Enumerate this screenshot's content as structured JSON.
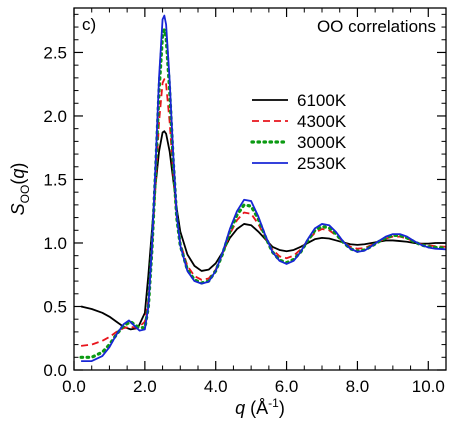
{
  "chart_data": {
    "type": "line",
    "panel_label": "c)",
    "annotation": "OO correlations",
    "xlabel": {
      "symbol": "q",
      "unit_open": " (Å",
      "unit_exp": "-1",
      "unit_close": ")"
    },
    "ylabel": {
      "symbol": "S",
      "subscript": "OO",
      "arg_open": "(",
      "arg": "q",
      "arg_close": ")"
    },
    "xlim": [
      0.0,
      10.5
    ],
    "ylim": [
      0.0,
      2.85
    ],
    "xticks": [
      "0.0",
      "2.0",
      "4.0",
      "6.0",
      "8.0",
      "10.0"
    ],
    "xtick_values": [
      0,
      2,
      4,
      6,
      8,
      10
    ],
    "yticks": [
      "0.0",
      "0.5",
      "1.0",
      "1.5",
      "2.0",
      "2.5"
    ],
    "ytick_values": [
      0,
      0.5,
      1.0,
      1.5,
      2.0,
      2.5
    ],
    "grid": false,
    "legend_position": "upper-right",
    "series": [
      {
        "name": "6100K",
        "color": "#000000",
        "style": "solid",
        "points": [
          [
            0.2,
            0.5
          ],
          [
            0.5,
            0.48
          ],
          [
            0.8,
            0.45
          ],
          [
            1.0,
            0.42
          ],
          [
            1.2,
            0.38
          ],
          [
            1.4,
            0.34
          ],
          [
            1.6,
            0.32
          ],
          [
            1.8,
            0.33
          ],
          [
            2.0,
            0.45
          ],
          [
            2.1,
            0.75
          ],
          [
            2.2,
            1.1
          ],
          [
            2.3,
            1.45
          ],
          [
            2.4,
            1.72
          ],
          [
            2.5,
            1.87
          ],
          [
            2.55,
            1.88
          ],
          [
            2.6,
            1.86
          ],
          [
            2.7,
            1.72
          ],
          [
            2.8,
            1.5
          ],
          [
            2.9,
            1.27
          ],
          [
            3.0,
            1.09
          ],
          [
            3.2,
            0.91
          ],
          [
            3.4,
            0.82
          ],
          [
            3.6,
            0.78
          ],
          [
            3.8,
            0.79
          ],
          [
            4.0,
            0.84
          ],
          [
            4.2,
            0.93
          ],
          [
            4.4,
            1.04
          ],
          [
            4.6,
            1.11
          ],
          [
            4.8,
            1.15
          ],
          [
            5.0,
            1.14
          ],
          [
            5.2,
            1.09
          ],
          [
            5.4,
            1.03
          ],
          [
            5.6,
            0.97
          ],
          [
            5.8,
            0.945
          ],
          [
            6.0,
            0.935
          ],
          [
            6.2,
            0.945
          ],
          [
            6.4,
            0.97
          ],
          [
            6.6,
            1.0
          ],
          [
            6.8,
            1.03
          ],
          [
            7.0,
            1.04
          ],
          [
            7.2,
            1.035
          ],
          [
            7.4,
            1.02
          ],
          [
            7.6,
            1.005
          ],
          [
            7.8,
            0.99
          ],
          [
            8.0,
            0.985
          ],
          [
            8.2,
            0.99
          ],
          [
            8.4,
            1.0
          ],
          [
            8.6,
            1.01
          ],
          [
            8.8,
            1.02
          ],
          [
            9.0,
            1.02
          ],
          [
            9.2,
            1.015
          ],
          [
            9.4,
            1.01
          ],
          [
            9.6,
            1.0
          ],
          [
            9.8,
            0.995
          ],
          [
            10.0,
            0.995
          ],
          [
            10.2,
            1.0
          ],
          [
            10.5,
            1.0
          ]
        ]
      },
      {
        "name": "4300K",
        "color": "#e8141c",
        "style": "dashed",
        "points": [
          [
            0.2,
            0.19
          ],
          [
            0.5,
            0.2
          ],
          [
            0.8,
            0.23
          ],
          [
            1.0,
            0.26
          ],
          [
            1.2,
            0.3
          ],
          [
            1.4,
            0.33
          ],
          [
            1.6,
            0.34
          ],
          [
            1.8,
            0.33
          ],
          [
            2.0,
            0.38
          ],
          [
            2.1,
            0.55
          ],
          [
            2.2,
            0.95
          ],
          [
            2.3,
            1.45
          ],
          [
            2.4,
            1.95
          ],
          [
            2.5,
            2.26
          ],
          [
            2.55,
            2.29
          ],
          [
            2.6,
            2.25
          ],
          [
            2.7,
            1.95
          ],
          [
            2.8,
            1.55
          ],
          [
            2.9,
            1.2
          ],
          [
            3.0,
            1.0
          ],
          [
            3.2,
            0.82
          ],
          [
            3.4,
            0.74
          ],
          [
            3.6,
            0.71
          ],
          [
            3.8,
            0.72
          ],
          [
            4.0,
            0.79
          ],
          [
            4.2,
            0.92
          ],
          [
            4.4,
            1.07
          ],
          [
            4.6,
            1.18
          ],
          [
            4.8,
            1.24
          ],
          [
            5.0,
            1.23
          ],
          [
            5.2,
            1.15
          ],
          [
            5.4,
            1.04
          ],
          [
            5.6,
            0.95
          ],
          [
            5.8,
            0.895
          ],
          [
            6.0,
            0.88
          ],
          [
            6.2,
            0.9
          ],
          [
            6.4,
            0.95
          ],
          [
            6.6,
            1.02
          ],
          [
            6.8,
            1.08
          ],
          [
            7.0,
            1.11
          ],
          [
            7.2,
            1.1
          ],
          [
            7.4,
            1.06
          ],
          [
            7.6,
            1.01
          ],
          [
            7.8,
            0.97
          ],
          [
            8.0,
            0.955
          ],
          [
            8.2,
            0.96
          ],
          [
            8.4,
            0.985
          ],
          [
            8.6,
            1.01
          ],
          [
            8.8,
            1.035
          ],
          [
            9.0,
            1.05
          ],
          [
            9.2,
            1.05
          ],
          [
            9.4,
            1.035
          ],
          [
            9.6,
            1.01
          ],
          [
            9.8,
            0.99
          ],
          [
            10.0,
            0.98
          ],
          [
            10.2,
            0.975
          ],
          [
            10.5,
            0.97
          ]
        ]
      },
      {
        "name": "3000K",
        "color": "#0b9a12",
        "style": "dotted",
        "points": [
          [
            0.2,
            0.1
          ],
          [
            0.5,
            0.1
          ],
          [
            0.8,
            0.14
          ],
          [
            1.0,
            0.2
          ],
          [
            1.2,
            0.28
          ],
          [
            1.4,
            0.35
          ],
          [
            1.6,
            0.38
          ],
          [
            1.8,
            0.34
          ],
          [
            2.0,
            0.33
          ],
          [
            2.1,
            0.5
          ],
          [
            2.2,
            0.95
          ],
          [
            2.3,
            1.55
          ],
          [
            2.4,
            2.2
          ],
          [
            2.5,
            2.64
          ],
          [
            2.55,
            2.68
          ],
          [
            2.6,
            2.62
          ],
          [
            2.7,
            2.2
          ],
          [
            2.8,
            1.65
          ],
          [
            2.9,
            1.2
          ],
          [
            3.0,
            0.98
          ],
          [
            3.2,
            0.79
          ],
          [
            3.4,
            0.71
          ],
          [
            3.6,
            0.685
          ],
          [
            3.8,
            0.7
          ],
          [
            4.0,
            0.78
          ],
          [
            4.2,
            0.92
          ],
          [
            4.4,
            1.09
          ],
          [
            4.6,
            1.22
          ],
          [
            4.8,
            1.3
          ],
          [
            5.0,
            1.29
          ],
          [
            5.2,
            1.19
          ],
          [
            5.4,
            1.05
          ],
          [
            5.6,
            0.93
          ],
          [
            5.8,
            0.865
          ],
          [
            6.0,
            0.845
          ],
          [
            6.2,
            0.87
          ],
          [
            6.4,
            0.93
          ],
          [
            6.6,
            1.02
          ],
          [
            6.8,
            1.1
          ],
          [
            7.0,
            1.13
          ],
          [
            7.2,
            1.12
          ],
          [
            7.4,
            1.07
          ],
          [
            7.6,
            1.005
          ],
          [
            7.8,
            0.955
          ],
          [
            8.0,
            0.935
          ],
          [
            8.2,
            0.945
          ],
          [
            8.4,
            0.975
          ],
          [
            8.6,
            1.01
          ],
          [
            8.8,
            1.04
          ],
          [
            9.0,
            1.06
          ],
          [
            9.2,
            1.06
          ],
          [
            9.4,
            1.04
          ],
          [
            9.6,
            1.01
          ],
          [
            9.8,
            0.985
          ],
          [
            10.0,
            0.97
          ],
          [
            10.2,
            0.965
          ],
          [
            10.5,
            0.96
          ]
        ]
      },
      {
        "name": "2530K",
        "color": "#1826d6",
        "style": "solid",
        "points": [
          [
            0.2,
            0.07
          ],
          [
            0.5,
            0.07
          ],
          [
            0.8,
            0.11
          ],
          [
            1.0,
            0.18
          ],
          [
            1.2,
            0.28
          ],
          [
            1.4,
            0.36
          ],
          [
            1.55,
            0.39
          ],
          [
            1.7,
            0.35
          ],
          [
            1.85,
            0.31
          ],
          [
            2.0,
            0.32
          ],
          [
            2.1,
            0.5
          ],
          [
            2.2,
            0.97
          ],
          [
            2.3,
            1.6
          ],
          [
            2.4,
            2.3
          ],
          [
            2.5,
            2.76
          ],
          [
            2.55,
            2.79
          ],
          [
            2.6,
            2.72
          ],
          [
            2.7,
            2.28
          ],
          [
            2.8,
            1.7
          ],
          [
            2.9,
            1.22
          ],
          [
            3.0,
            0.98
          ],
          [
            3.2,
            0.78
          ],
          [
            3.4,
            0.7
          ],
          [
            3.6,
            0.68
          ],
          [
            3.8,
            0.695
          ],
          [
            4.0,
            0.78
          ],
          [
            4.2,
            0.93
          ],
          [
            4.4,
            1.11
          ],
          [
            4.6,
            1.25
          ],
          [
            4.8,
            1.34
          ],
          [
            5.0,
            1.33
          ],
          [
            5.2,
            1.21
          ],
          [
            5.4,
            1.06
          ],
          [
            5.6,
            0.93
          ],
          [
            5.8,
            0.86
          ],
          [
            6.0,
            0.835
          ],
          [
            6.2,
            0.86
          ],
          [
            6.4,
            0.93
          ],
          [
            6.6,
            1.03
          ],
          [
            6.8,
            1.115
          ],
          [
            7.0,
            1.15
          ],
          [
            7.2,
            1.14
          ],
          [
            7.4,
            1.085
          ],
          [
            7.6,
            1.01
          ],
          [
            7.8,
            0.955
          ],
          [
            8.0,
            0.93
          ],
          [
            8.2,
            0.94
          ],
          [
            8.4,
            0.975
          ],
          [
            8.6,
            1.015
          ],
          [
            8.8,
            1.05
          ],
          [
            9.0,
            1.07
          ],
          [
            9.2,
            1.07
          ],
          [
            9.4,
            1.05
          ],
          [
            9.6,
            1.015
          ],
          [
            9.8,
            0.985
          ],
          [
            10.0,
            0.965
          ],
          [
            10.2,
            0.955
          ],
          [
            10.5,
            0.95
          ]
        ]
      }
    ]
  }
}
